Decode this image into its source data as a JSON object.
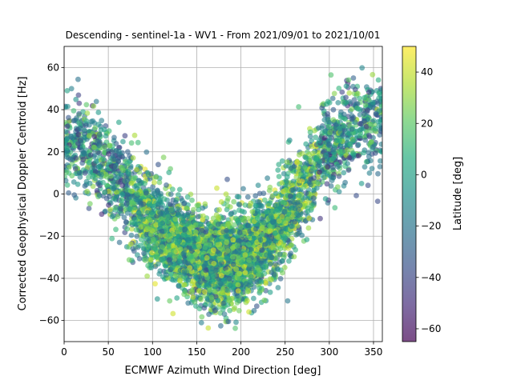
{
  "chart_data": {
    "type": "scatter",
    "title": "Descending - sentinel-1a - WV1 - From 2021/09/01 to 2021/10/01",
    "xlabel": "ECMWF Azimuth Wind Direction [deg]",
    "ylabel": "Corrected Geophysical Doppler Centroid [Hz]",
    "xlim": [
      0,
      360
    ],
    "ylim": [
      -70,
      70
    ],
    "xticks": [
      0,
      50,
      100,
      150,
      200,
      250,
      300,
      350
    ],
    "yticks": [
      -60,
      -40,
      -20,
      0,
      20,
      40,
      60
    ],
    "grid": true,
    "marker_alpha": 0.6,
    "colorbar": {
      "label": "Latitude [deg]",
      "colormap": "viridis",
      "range": [
        -65,
        50
      ],
      "ticks": [
        -60,
        -40,
        -20,
        0,
        20,
        40
      ]
    },
    "trend": {
      "description": "inverted cosine-like relation: doppler peaks near 0/360 deg and bottoms near 180 deg",
      "x_samples": [
        0,
        30,
        60,
        90,
        120,
        150,
        180,
        210,
        240,
        270,
        300,
        330,
        360
      ],
      "y_center": [
        25,
        20,
        8,
        -10,
        -22,
        -30,
        -33,
        -28,
        -18,
        2,
        22,
        32,
        35
      ],
      "y_spread": [
        15,
        15,
        14,
        14,
        14,
        14,
        14,
        14,
        14,
        14,
        14,
        15,
        15
      ]
    },
    "point_count": 5200
  }
}
